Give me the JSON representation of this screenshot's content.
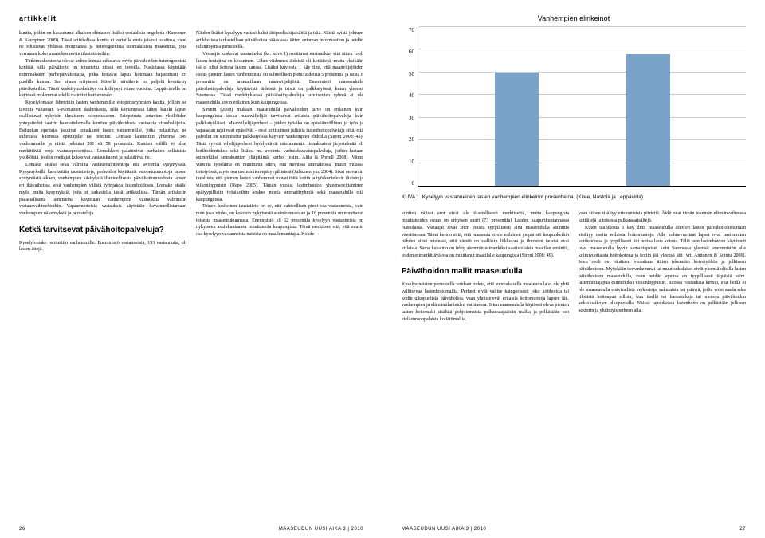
{
  "left": {
    "section_label": "artikkelit",
    "col1_html": "<p>kuntia, joihin on kasautunut alhaisen elintason lisäksi sosiaalisia ongelmia (Karvonen &amp; Kauppinen 2009). Tässä artikkelissa kuntia ei vertailla ensisijaisesti toisiinsa, vaan ne edustavat yhdessä moninaista ja heterogeenistä suomalaisista maaseutua, jota verrataan koko maata koskeviin tilastotietoihin.</p><p>Tutkimuskohteena olevat kolme kuntaa edustavat myös päivähoidon heterogeenistä kenttää, sillä päivähoito on toteutettu niissä eri tavoilla. Nastolassa käytetään enimmäkseen perhepäivähoitajia, jotka hoitavat lapsia kotonaan hajautetusti eri puolilla kuntaa. Sen sijaan erityisesti Kiteellä päivähoito on paljolti keskitetty päiväkoteihin. Tämä keskittymiskehitys on kiihtynyt viime vuosina. Leppävirralla on käytössä molemmat edellä mainitut hoitomuodot.</p><p>Kyselylomake lähetettiin lasten vanhemmille esiopetusryhmien kautta, jolloin se tavoitti valtaosan 6-vuotiaiden ikäluokasta, sillä käytännössä lähes kaikki lapset osallistuvat nykyisin ilmaiseen esiopetukseen. Esiopetusta antavien yksiköiden yhteystiedot saatiin haastattelemalla kuntien päivähoidosta vastaavia viranhaltijoita. Esiluokan opettajat jakoivat lomakkeet lasten vanhemmille, jotka palauttivat ne suljetussa kuoressa opettajalle tai postitse. Lomake lähetettiin yhteensä 349 vanhemmalle ja niistä palautui 201 eli 58 prosenttia. Kuntien välillä ei ollut merkittäviä eroja vastausprosentissa. Lomakkeet palautuivat parhaiten sellaisista yksiköistä, joiden opettajat kokosivat vastauskuoret ja palauttivat ne.</p><p>Lomake sisälsi sekä valmiita vastausvaihtoehtoja että avoimia kysymyksiä. Kysymyksillä karoitettiin taustatietoja, perheiden käyttämiä esiopetusmuotoja lapsen syntymästä alkaen, vanhempien käsityksiä ihanteellisesta päivähoitomuodosta lapsen eri ikävaiheissa sekä vanhempien välistä työnjakoa lastenhoidossa. Lomake sisälsi myös muita kysymyksiä, joita ei tarkastella tässä artikkelissa. Tämän artikkelin pääasiallisena aineistona käytetään vanhempien vastauksia valmiisiin vastausvaihtoehtoihin. Vapaamuotoisia vastauksia käytetään havainnollistamaan vanhempien näkemyksiä ja perusteluja.</p>",
    "subhead1": "Ketkä tarvitsevat päivähoitopalveluja?",
    "col1_bottom": "<p>Kyselylomake osoitettiin vanhemmille. Enemmistö vastanneista, 193 vastannutta, oli lasten äitejä.</p>",
    "col2_html": "<p>Näiden lisäksi kyselyyn vastasi kaksi äitipuolta/sijaisäitiä ja isää. Näistä syistä johtuen artikkelissa tarkastellaan päivähoitoa pääasiassa äitien antaman informaation ja heidän tulkintojensa perusteella.</p><p>Vastaajia koskevat taustatiedot (ks. kuva 1) osoittavat ensinnäkin, että äitien rooli lasten hoitajina on keskeinen. Lähes viidennes äideistä oli kotiäitejä, mutta yksikään isä ei ollut kotona lasten kanssa. Lisäksi kuviosta 1 käy ilmi, että maanviljejöiden osuus pienten lasten vanhemmista on suhteellisen pieni: äideistä 5 prosenttia ja isistä 8 prosenttia on ammatiltaan maanviljelijöitä. Enemmistö maaseudulla päivähoitopalveluja käyttävistä äideistä ja isistä on palkkatyössä, kuten yleensä Suomessa. Tässä merkityksessä päivähoitopalveluja tarvitsevien ryhmä ei ole maaseudulla kovin erilainen kuin kaupungeissa.</p><p>Sirenin (2008) mukaan maaseudulla päivähoidon tarve on erilainen kuin kaupungeissa koska maanviljelijät tarvitsevat erilaisia päivähoitopalveluja kuin palkkatyöläiset. Maanviljelijäperheet – joiden työaika on epäsäännöllinen ja työn ja vapaaajan rajat ovat epäselvät – ovat kritisoineet julkisia lastenhoitopalveluja siitä, että palvelut on suunniteltu palkkatyössä käyvien vanhempien ehdoilla (Sireni 2008: 45). Tästä syystä viljelijäperheet hyödyntävät mieluummin rinnakkaista järjestelmää eli kotihoidontukea sekä lisäksi ns. avoimia varhaiskasvatuspalveluja, joihin luetaan esimerkiksi seurakuntien ylläpitämät kerhot (esim. Alila &amp; Portell 2008). Viime vuosina työelämä on muuttunut siten, että monissa ammateissa, muun muassa tietotyössä, myös osa useimmiten epätyypillisissä (Julkunen ym. 2004). Siksi on varsin tavallista, että pienten lasten vanhemmat tuovat töitä kotiin ja työskentelevät iltaisin ja viikonloppuisin (Repo 2005). Tämän vuoksi lastenhoidon yhteensovittaminen epätyypillisiin työaikoihin koskee monia ammattiryhmiä sekä maaseudulla että kaupungeissa.</p><p>Toinen keskeinen taustatieto on se, että suhteellisen pieni osa vastanneista, vain noin joka viides, on kotoisin nykyisestä asuinkunnastaan ja 16 prosenttia on muuttanut toisesta maaseutukunnasta. Enemmistö eli 62 prosenttia kyselyyn vastanneista on nykyiseen asuinkuntaansa muuttaneita kaupungista. Tämä merkitsee sitä, että suurin osa kyselyyn vastanneista naisista on maallemuuttajia. Kohde-</p>",
    "page_num": "26",
    "footer_journal": "MAASEUDUN UUSI AIKA 3 | 2010"
  },
  "right": {
    "chart": {
      "title": "Vanhempien elinkeinot",
      "y_max": 70,
      "y_tick_step": 10,
      "bars": [
        50,
        58
      ],
      "bar_color": "#7aa3c9",
      "grid_color": "#cccccc",
      "axis_color": "#000000"
    },
    "caption": "KUVA 1. Kyselyyn vastanneiden lasten vanhempien elinkeinot prosentteina. (Kitee, Nastola ja Leppävirta)",
    "col1_html": "<p>kuntien väliset erot eivät ole tilastollisesti merkitseviä, mutta kaupungista muuttaneiden osuus on erityisen suuri (73 prosenttia) Lahden naapurikuntannassa Nastolassa. Vastaajat eivät siten edusta tyypillisesti aina maaseudulla asunutta väestönosaa. Tämä kertoo siitä, että maaseutu ei ole erilainen ympäristö kaupunkeihin nähden siinä mielessä, että väestö on sielläkin liikkuvaa ja ihmisten taustat ovat erilaisia. Sama havainto on tehty aiemmin esimerkiksi saaristolaisia maatilan emäntiä, joiden esimerkittävä osa on muuttanut maatilalle kaupungista (Sireni 2008: 49).</p>",
    "subhead2": "Päivähoidon mallit maaseudulla",
    "col1_bottom": "<p>Kyselyaineiston perusteella voidaan todeta, että suomalaisella maaseudulla ei ole yhtä vallitsevaa lastenhoitomallia. Perheet eivät valitse kategorisesti joko kotihoitoa tai kodin ulkopuolista päivähoitoa, vaan yhdistelevät erilaisia hoitomuotoja lapsen iän, vanhempien ja elämäntilanteiden vaihtuessa. Siten maaseudulla käytössä oleva pienten lasten hoitomalli sisältää pohjoismaista palkansaajaäidin mallia ja pelkästään sen eteläeurooppalaista kotiäitimallia.</p>",
    "col2_html": "<p>vaan siihen sisältyy erisuuntaisia piirteitä. Äidit ovat tämän tekemän elämänvaiheessa kotiäitejä ja toisessa palkansaajaäitejä.</p><p>Kuten taulukosta 1 käy ilmi, maaseudulla asuvien lasten päivähoitohistoriaan sisältyy useita erilaisia hoitomuotoja. Alle kolmevuotiaat lapset ovat useimmiten kotihoidossa ja tyypillisesti äiti hoitaa lasta kotona. Tältä osin lastenhoidon käytännöt ovat maaseudulla hyvin samantapaiset kuin Suomessa yleensä: enemmistön alle kolmivuotiaista hoitokotona ja kotiin jää yleensä äiti (vrt. Anttonen &amp; Sointu 2006). Isien rooli on vähäinen verrattuna äitien tekemään hoivatyöhön ja julkiseen päivähoitoon. Myöskään isovanhemmat tai muut sukulaiset eivät yleensä olisilla lasten päivähoitoon maaseudulla, vaan heidän apunsa on tyypillisesti tilpäistä esim. lastenhoitajapua esimerkiksi viikonloppuisin. Sitossa vastauksia kertoo, että heillä ei ole maaseudulla epävirallista verkostoja, sukulaisia tai ystäviä, joilta voisi saada edes tilpäistä hoitoapua silloin, kun itsellä on harrastuksja tai menoja päivähoidon aukioloaikojen ulkopuolella. Näissä tapauksissa lastenhoito on pelkästään julkisen sektorin ja yhdintyisperheen alla.</p>",
    "footer_journal": "MAASEUDUN UUSI AIKA 3 | 2010",
    "page_num": "27"
  }
}
